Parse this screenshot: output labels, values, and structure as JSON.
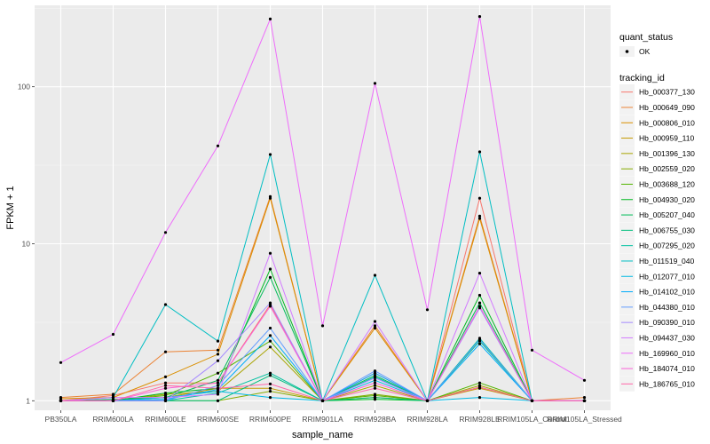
{
  "chart_data": {
    "type": "line",
    "title": "",
    "xlabel": "sample_name",
    "ylabel": "FPKM + 1",
    "y_scale": "log10",
    "ylim": [
      0.87,
      330
    ],
    "y_ticks": [
      1,
      10,
      100
    ],
    "y_tick_labels": [
      "1",
      "10",
      "100"
    ],
    "grid": true,
    "panel_background": "#ebebeb",
    "categories": [
      "PB350LA",
      "RRIM600LA",
      "RRIM600LE",
      "RRIM600SE",
      "RRIM600PE",
      "RRIM901LA",
      "RRIM928BA",
      "RRIM928LA",
      "RRIM928LE",
      "RRIM105LA_Control",
      "RRIM105LA_Stressed"
    ],
    "point_legend": {
      "title": "quant_status",
      "entries": [
        "OK"
      ]
    },
    "color_legend_title": "tracking_id",
    "series": [
      {
        "name": "Hb_000377_130",
        "color": "#F8766D",
        "values": [
          1.0,
          1.08,
          1.3,
          1.3,
          4.1,
          1.0,
          1.5,
          1.0,
          19.5,
          1.0,
          1.0
        ]
      },
      {
        "name": "Hb_000649_090",
        "color": "#EB8335",
        "values": [
          1.05,
          1.1,
          2.05,
          2.1,
          20.0,
          1.0,
          3.0,
          1.0,
          15.0,
          1.0,
          1.05
        ]
      },
      {
        "name": "Hb_000806_010",
        "color": "#DA8F00",
        "values": [
          1.03,
          1.05,
          1.42,
          1.98,
          19.5,
          1.0,
          2.9,
          1.0,
          14.5,
          1.0,
          1.0
        ]
      },
      {
        "name": "Hb_000959_110",
        "color": "#C49A00",
        "values": [
          1.0,
          1.0,
          1.05,
          1.2,
          1.2,
          1.0,
          1.05,
          1.0,
          1.2,
          1.0,
          1.0
        ]
      },
      {
        "name": "Hb_001396_130",
        "color": "#A9A400",
        "values": [
          1.0,
          1.0,
          1.1,
          1.15,
          2.2,
          1.0,
          1.25,
          1.0,
          1.25,
          1.0,
          1.0
        ]
      },
      {
        "name": "Hb_002559_020",
        "color": "#86AC00",
        "values": [
          1.0,
          1.0,
          1.0,
          1.0,
          1.15,
          1.0,
          1.1,
          1.0,
          1.22,
          1.0,
          1.0
        ]
      },
      {
        "name": "Hb_003688_120",
        "color": "#53B400",
        "values": [
          1.0,
          1.0,
          1.08,
          1.5,
          2.4,
          1.0,
          1.08,
          1.0,
          1.3,
          1.0,
          1.0
        ]
      },
      {
        "name": "Hb_004930_020",
        "color": "#00B81F",
        "values": [
          1.0,
          1.0,
          1.12,
          1.2,
          6.9,
          1.0,
          1.02,
          1.0,
          4.7,
          1.0,
          1.0
        ]
      },
      {
        "name": "Hb_005207_040",
        "color": "#00BC59",
        "values": [
          1.0,
          1.02,
          1.05,
          1.35,
          6.1,
          1.0,
          1.45,
          1.0,
          4.2,
          1.0,
          1.0
        ]
      },
      {
        "name": "Hb_006755_030",
        "color": "#00BF7D",
        "values": [
          1.0,
          1.0,
          1.0,
          1.0,
          1.45,
          1.0,
          1.05,
          1.0,
          2.4,
          1.0,
          1.0
        ]
      },
      {
        "name": "Hb_007295_020",
        "color": "#00C0A0",
        "values": [
          1.0,
          1.0,
          1.0,
          1.12,
          1.5,
          1.0,
          1.42,
          1.0,
          2.5,
          1.0,
          1.0
        ]
      },
      {
        "name": "Hb_011519_040",
        "color": "#00BEC3",
        "values": [
          1.0,
          1.05,
          4.1,
          2.4,
          37.0,
          1.0,
          6.3,
          1.0,
          38.5,
          1.0,
          1.0
        ]
      },
      {
        "name": "Hb_012077_010",
        "color": "#00B8E3",
        "values": [
          1.0,
          1.0,
          1.05,
          1.15,
          1.05,
          1.0,
          1.35,
          1.0,
          1.05,
          1.0,
          1.0
        ]
      },
      {
        "name": "Hb_014102_010",
        "color": "#00ADFA",
        "values": [
          1.0,
          1.0,
          1.02,
          1.18,
          2.6,
          1.0,
          1.5,
          1.0,
          2.3,
          1.0,
          1.0
        ]
      },
      {
        "name": "Hb_044380_010",
        "color": "#619CFF",
        "values": [
          1.0,
          1.0,
          1.0,
          1.25,
          2.9,
          1.0,
          1.55,
          1.0,
          2.45,
          1.0,
          1.0
        ]
      },
      {
        "name": "Hb_090390_010",
        "color": "#A58AFF",
        "values": [
          1.0,
          1.0,
          1.0,
          1.8,
          4.2,
          1.0,
          1.4,
          1.0,
          3.9,
          1.0,
          1.0
        ]
      },
      {
        "name": "Hb_094437_030",
        "color": "#D27AFF",
        "values": [
          1.0,
          1.05,
          1.05,
          1.1,
          8.7,
          1.0,
          3.2,
          1.0,
          6.5,
          1.0,
          1.0
        ]
      },
      {
        "name": "Hb_169960_010",
        "color": "#EE6DFB",
        "values": [
          1.75,
          2.65,
          11.8,
          42.0,
          270.0,
          3.0,
          105.0,
          3.8,
          280.0,
          2.1,
          1.35
        ]
      },
      {
        "name": "Hb_184074_010",
        "color": "#FB61D7",
        "values": [
          1.0,
          1.0,
          1.2,
          1.3,
          4.0,
          1.0,
          1.3,
          1.0,
          4.0,
          1.0,
          1.0
        ]
      },
      {
        "name": "Hb_186765_010",
        "color": "#FF66A8",
        "values": [
          1.0,
          1.0,
          1.25,
          1.2,
          1.28,
          1.0,
          1.2,
          1.0,
          1.22,
          1.0,
          1.0
        ]
      }
    ]
  }
}
